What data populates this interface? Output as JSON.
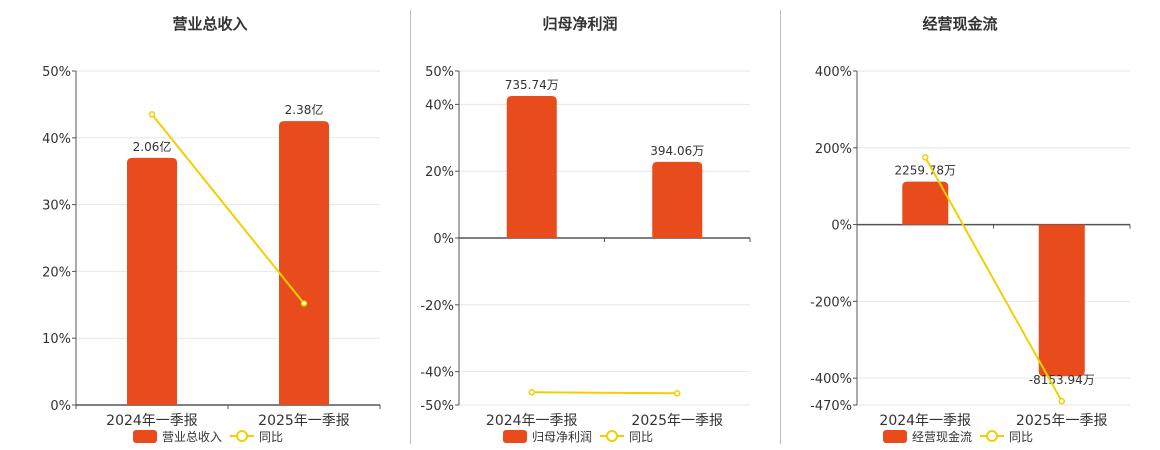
{
  "chart_data": [
    {
      "type": "bar",
      "title": "营业总收入",
      "categories": [
        "2024年一季报",
        "2025年一季报"
      ],
      "series": [
        {
          "name": "营业总收入",
          "type": "bar",
          "values": [
            37,
            42.5
          ],
          "labels": [
            "2.06亿",
            "2.38亿"
          ]
        },
        {
          "name": "同比",
          "type": "line",
          "values": [
            43.5,
            15.2
          ]
        }
      ],
      "yticks": [
        0,
        10,
        20,
        30,
        40,
        50
      ],
      "ytick_labels": [
        "0%",
        "10%",
        "20%",
        "30%",
        "40%",
        "50%"
      ],
      "ylim": [
        0,
        50
      ],
      "grid": true,
      "legend": "bottom"
    },
    {
      "type": "bar",
      "title": "归母净利润",
      "categories": [
        "2024年一季报",
        "2025年一季报"
      ],
      "series": [
        {
          "name": "归母净利润",
          "type": "bar",
          "values": [
            42.5,
            22.8
          ],
          "labels": [
            "735.74万",
            "394.06万"
          ]
        },
        {
          "name": "同比",
          "type": "line",
          "values": [
            -46.2,
            -46.5
          ]
        }
      ],
      "yticks": [
        -50,
        -40,
        -20,
        0,
        20,
        40,
        50
      ],
      "ytick_labels": [
        "-50%",
        "-40%",
        "-20%",
        "0%",
        "20%",
        "40%",
        "50%"
      ],
      "ylim": [
        -50,
        50
      ],
      "grid": true,
      "legend": "bottom"
    },
    {
      "type": "bar",
      "title": "经营现金流",
      "categories": [
        "2024年一季报",
        "2025年一季报"
      ],
      "series": [
        {
          "name": "经营现金流",
          "type": "bar",
          "values": [
            112,
            -395
          ],
          "labels": [
            "2259.78万",
            "-8153.94万"
          ]
        },
        {
          "name": "同比",
          "type": "line",
          "values": [
            175,
            -460
          ]
        }
      ],
      "yticks": [
        -470,
        -400,
        -200,
        0,
        200,
        400
      ],
      "ytick_labels": [
        "-470%",
        "-400%",
        "-200%",
        "0%",
        "200%",
        "400%"
      ],
      "ylim": [
        -470,
        400
      ],
      "grid": true,
      "legend": "bottom"
    }
  ],
  "colors": {
    "bar": "#e84c1c",
    "line": "#f2d000",
    "grid": "#e6e6ee",
    "axis": "#555555"
  }
}
